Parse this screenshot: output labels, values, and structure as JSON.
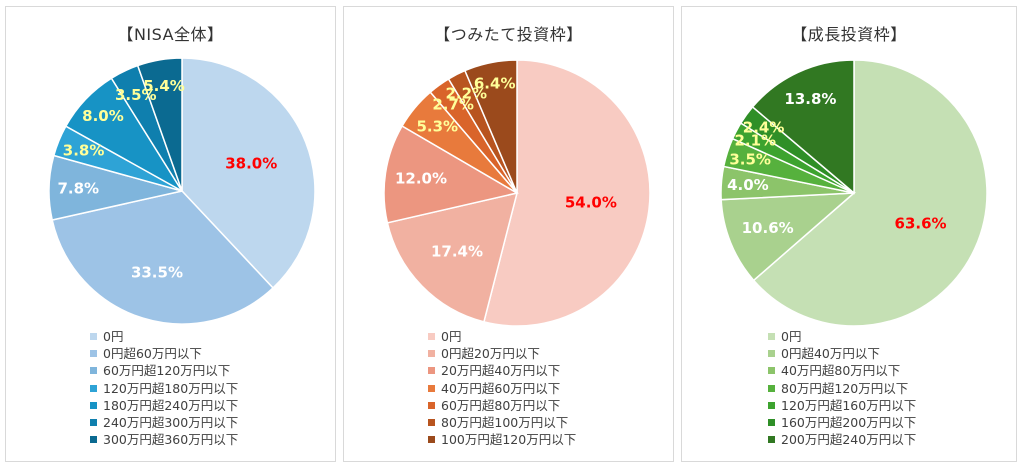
{
  "chart_data": [
    {
      "type": "pie",
      "title": "【NISA全体】",
      "categories": [
        "0円",
        "0円超60万円以下",
        "60万円超120万円以下",
        "120万円超180万円以下",
        "180万円超240万円以下",
        "240万円超300万円以下",
        "300万円超360万円以下"
      ],
      "values": [
        38.0,
        33.5,
        7.8,
        3.8,
        8.0,
        3.5,
        5.4
      ],
      "labels": [
        "38.0%",
        "33.5%",
        "7.8%",
        "3.8%",
        "8.0%",
        "3.5%",
        "5.4%"
      ],
      "colors": [
        "#bdd7ee",
        "#9dc3e6",
        "#7fb5dc",
        "#2ea3d6",
        "#1793c5",
        "#0f7fae",
        "#0b6a91"
      ],
      "label_colors": [
        "#ff0000",
        "#ffffff",
        "#ffffff",
        "#ffff99",
        "#ffff99",
        "#ffff99",
        "#ffff99"
      ],
      "legend_position": "bottom"
    },
    {
      "type": "pie",
      "title": "【つみたて投資枠】",
      "categories": [
        "0円",
        "0円超20万円以下",
        "20万円超40万円以下",
        "40万円超60万円以下",
        "60万円超80万円以下",
        "80万円超100万円以下",
        "100万円超120万円以下"
      ],
      "values": [
        54.0,
        17.4,
        12.0,
        5.3,
        2.7,
        2.2,
        6.4
      ],
      "labels": [
        "54.0%",
        "17.4%",
        "12.0%",
        "5.3%",
        "2.7%",
        "2.2%",
        "6.4%"
      ],
      "colors": [
        "#f8cbc2",
        "#f1b1a1",
        "#ec9680",
        "#e87a3c",
        "#d9642a",
        "#b8541f",
        "#9b4a1c"
      ],
      "label_colors": [
        "#ff0000",
        "#ffffff",
        "#ffffff",
        "#ffff99",
        "#ffff99",
        "#ffff99",
        "#ffff99"
      ],
      "legend_position": "bottom"
    },
    {
      "type": "pie",
      "title": "【成長投資枠】",
      "categories": [
        "0円",
        "0円超40万円以下",
        "40万円超80万円以下",
        "80万円超120万円以下",
        "120万円超160万円以下",
        "160万円超200万円以下",
        "200万円超240万円以下"
      ],
      "values": [
        63.6,
        10.6,
        4.0,
        3.5,
        2.1,
        2.4,
        13.8
      ],
      "labels": [
        "63.6%",
        "10.6%",
        "4.0%",
        "3.5%",
        "2.1%",
        "2.4%",
        "13.8%"
      ],
      "colors": [
        "#c5e0b4",
        "#a9d18e",
        "#8cc46a",
        "#56b13d",
        "#3da32f",
        "#2f8f27",
        "#317822"
      ],
      "label_colors": [
        "#ff0000",
        "#ffffff",
        "#ffffff",
        "#ffff99",
        "#ffff99",
        "#ffff99",
        "#ffffff"
      ],
      "legend_position": "bottom"
    }
  ]
}
